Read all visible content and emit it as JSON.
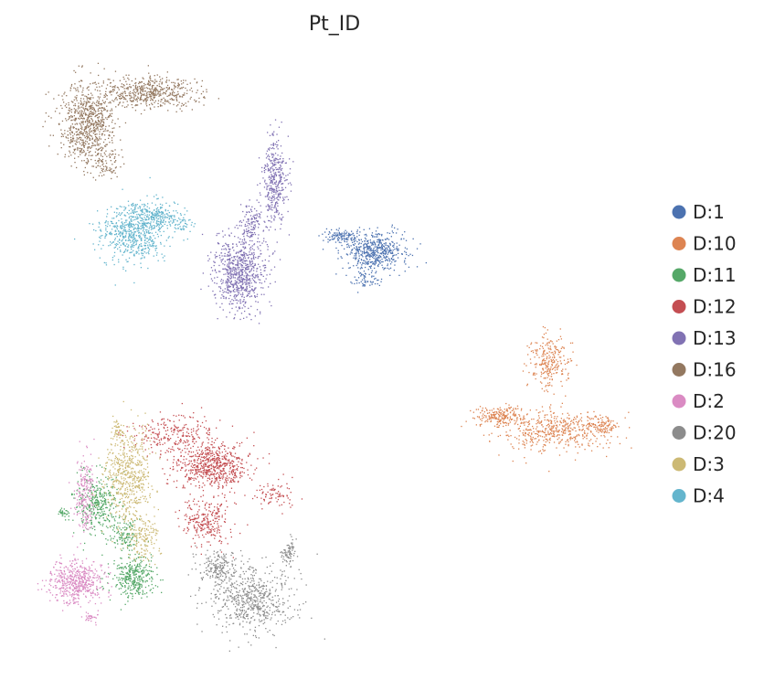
{
  "chart_data": {
    "type": "scatter",
    "title": "Pt_ID",
    "xlabel": "",
    "ylabel": "",
    "axes_visible": false,
    "grid": false,
    "legend_position": "right",
    "series": [
      {
        "name": "D:1",
        "color": "#4c72b0"
      },
      {
        "name": "D:10",
        "color": "#dd8452"
      },
      {
        "name": "D:11",
        "color": "#55a868"
      },
      {
        "name": "D:12",
        "color": "#c44e52"
      },
      {
        "name": "D:13",
        "color": "#8172b3"
      },
      {
        "name": "D:16",
        "color": "#937860"
      },
      {
        "name": "D:2",
        "color": "#da8bc3"
      },
      {
        "name": "D:20",
        "color": "#8c8c8c"
      },
      {
        "name": "D:3",
        "color": "#ccb974"
      },
      {
        "name": "D:4",
        "color": "#64b5cd"
      }
    ]
  }
}
